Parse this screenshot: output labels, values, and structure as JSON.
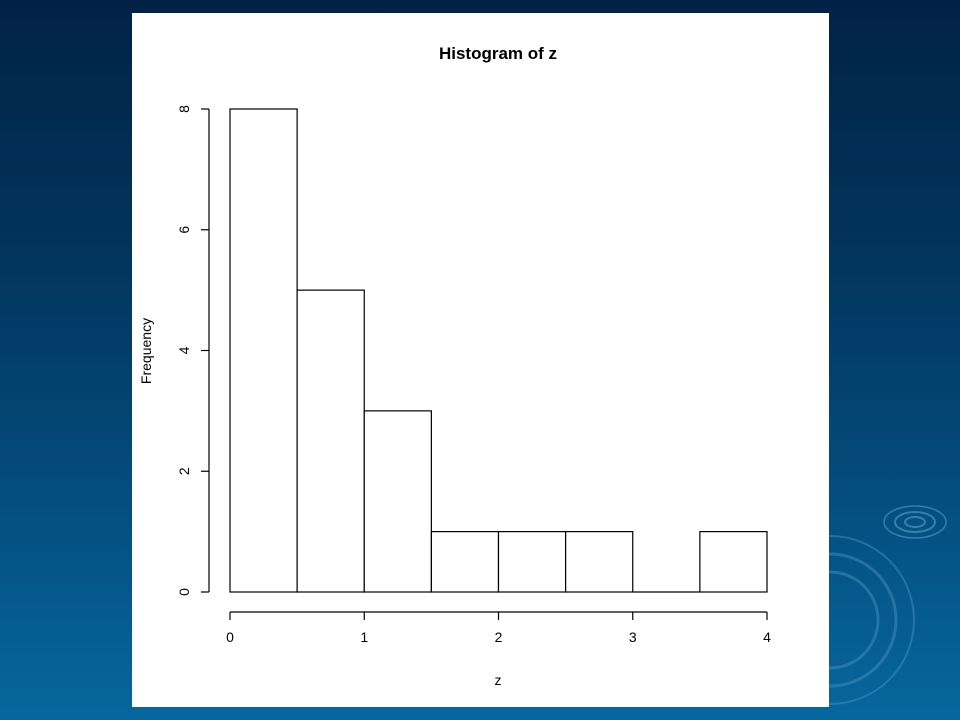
{
  "chart_data": {
    "type": "bar",
    "title": "Histogram of z",
    "xlabel": "z",
    "ylabel": "Frequency",
    "bins": [
      {
        "start": 0.0,
        "end": 0.5,
        "count": 8
      },
      {
        "start": 0.5,
        "end": 1.0,
        "count": 5
      },
      {
        "start": 1.0,
        "end": 1.5,
        "count": 3
      },
      {
        "start": 1.5,
        "end": 2.0,
        "count": 1
      },
      {
        "start": 2.0,
        "end": 2.5,
        "count": 1
      },
      {
        "start": 2.5,
        "end": 3.0,
        "count": 1
      },
      {
        "start": 3.0,
        "end": 3.5,
        "count": 0
      },
      {
        "start": 3.5,
        "end": 4.0,
        "count": 1
      }
    ],
    "xlim": [
      0,
      4
    ],
    "ylim": [
      0,
      8
    ],
    "xticks": [
      0,
      1,
      2,
      3,
      4
    ],
    "yticks": [
      0,
      2,
      4,
      6,
      8
    ],
    "grid": false,
    "legend": "none",
    "colors": {
      "bar_fill": "#ffffff",
      "bar_stroke": "#000000"
    }
  }
}
